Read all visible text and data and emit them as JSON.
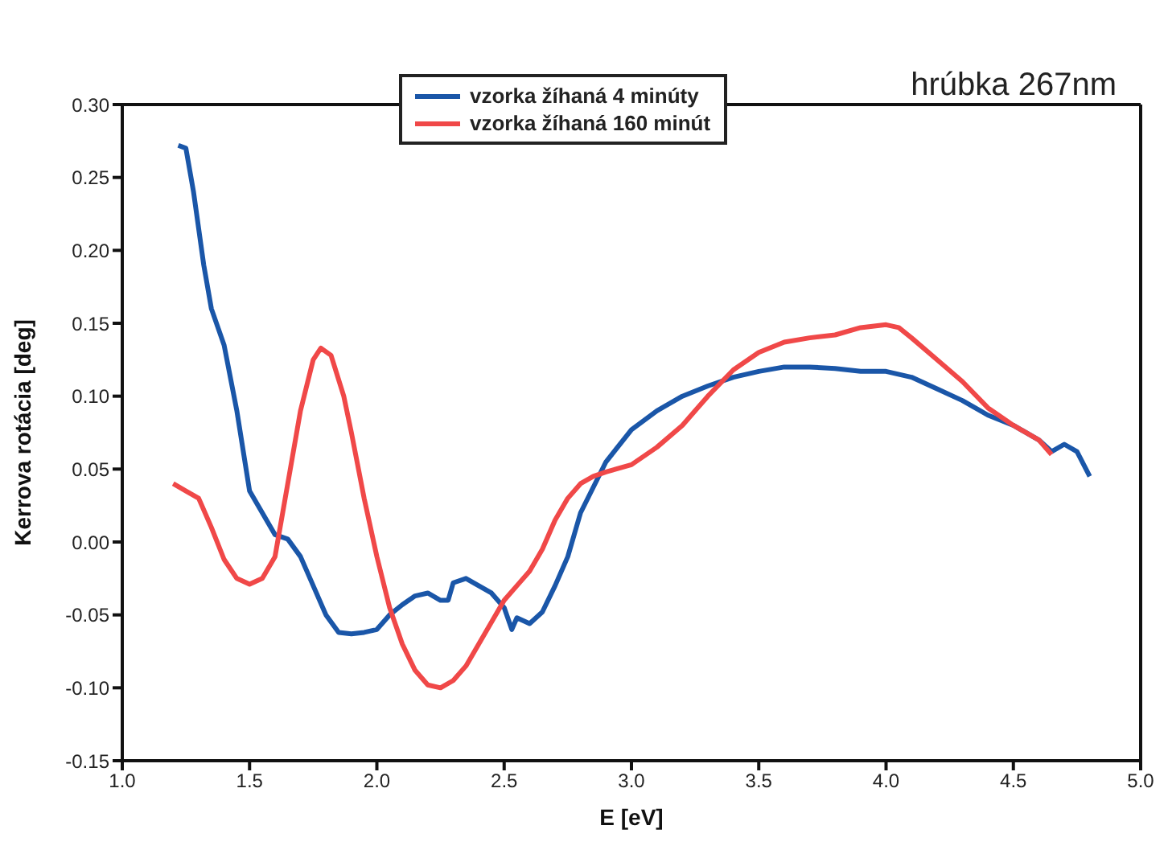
{
  "chart_data": {
    "type": "line",
    "xlabel": "E [eV]",
    "ylabel": "Kerrova rotácia [deg]",
    "annotations": [
      "hrúbka 267nm"
    ],
    "xlim": [
      1.0,
      5.0
    ],
    "xticks": [
      {
        "value": 1.0,
        "label": "1.0"
      },
      {
        "value": 1.5,
        "label": "1.5"
      },
      {
        "value": 2.0,
        "label": "2.0"
      },
      {
        "value": 2.5,
        "label": "2.5"
      },
      {
        "value": 3.0,
        "label": "3.0"
      },
      {
        "value": 3.5,
        "label": "3.5"
      },
      {
        "value": 4.0,
        "label": "4.0"
      },
      {
        "value": 4.5,
        "label": "4.5"
      },
      {
        "value": 5.0,
        "label": "5.0"
      }
    ],
    "ylim": [
      -0.15,
      0.3
    ],
    "yticks": [
      {
        "value": -0.15,
        "label": "-0.15"
      },
      {
        "value": -0.1,
        "label": "-0.10"
      },
      {
        "value": -0.05,
        "label": "-0.05"
      },
      {
        "value": 0,
        "label": "0.00"
      },
      {
        "value": 0.05,
        "label": "0.05"
      },
      {
        "value": 0.1,
        "label": "0.10"
      },
      {
        "value": 0.15,
        "label": "0.15"
      },
      {
        "value": 0.2,
        "label": "0.20"
      },
      {
        "value": 0.25,
        "label": "0.25"
      },
      {
        "value": 0.3,
        "label": "0.30"
      }
    ],
    "legend": "top",
    "marker": "none",
    "line_style": "solid",
    "series": [
      {
        "name": "vzorka žíhaná 4 minúty",
        "color": "#1a56a8",
        "x": [
          1.22,
          1.25,
          1.28,
          1.32,
          1.35,
          1.4,
          1.45,
          1.5,
          1.55,
          1.6,
          1.65,
          1.7,
          1.75,
          1.8,
          1.85,
          1.9,
          1.95,
          2.0,
          2.05,
          2.1,
          2.15,
          2.2,
          2.25,
          2.28,
          2.3,
          2.35,
          2.4,
          2.45,
          2.5,
          2.53,
          2.55,
          2.6,
          2.65,
          2.7,
          2.75,
          2.8,
          2.9,
          3.0,
          3.1,
          3.2,
          3.3,
          3.4,
          3.5,
          3.6,
          3.7,
          3.8,
          3.9,
          4.0,
          4.1,
          4.2,
          4.3,
          4.4,
          4.5,
          4.6,
          4.65,
          4.7,
          4.75,
          4.8
        ],
        "values": [
          0.272,
          0.27,
          0.24,
          0.19,
          0.16,
          0.135,
          0.09,
          0.035,
          0.02,
          0.005,
          0.002,
          -0.01,
          -0.03,
          -0.05,
          -0.062,
          -0.063,
          -0.062,
          -0.06,
          -0.05,
          -0.043,
          -0.037,
          -0.035,
          -0.04,
          -0.04,
          -0.028,
          -0.025,
          -0.03,
          -0.035,
          -0.045,
          -0.06,
          -0.052,
          -0.056,
          -0.048,
          -0.03,
          -0.01,
          0.02,
          0.055,
          0.077,
          0.09,
          0.1,
          0.107,
          0.113,
          0.117,
          0.12,
          0.12,
          0.119,
          0.117,
          0.117,
          0.113,
          0.105,
          0.097,
          0.087,
          0.08,
          0.07,
          0.062,
          0.067,
          0.062,
          0.045
        ]
      },
      {
        "name": "vzorka žíhaná 160 minút",
        "color": "#f04848",
        "x": [
          1.2,
          1.25,
          1.3,
          1.35,
          1.4,
          1.45,
          1.5,
          1.55,
          1.6,
          1.65,
          1.7,
          1.75,
          1.78,
          1.82,
          1.87,
          1.9,
          1.95,
          2.0,
          2.05,
          2.1,
          2.15,
          2.2,
          2.25,
          2.3,
          2.35,
          2.4,
          2.45,
          2.5,
          2.55,
          2.6,
          2.65,
          2.7,
          2.75,
          2.8,
          2.85,
          2.9,
          3.0,
          3.1,
          3.2,
          3.3,
          3.4,
          3.5,
          3.6,
          3.7,
          3.8,
          3.9,
          4.0,
          4.05,
          4.1,
          4.2,
          4.3,
          4.4,
          4.5,
          4.6,
          4.65
        ],
        "values": [
          0.04,
          0.035,
          0.03,
          0.01,
          -0.012,
          -0.025,
          -0.029,
          -0.025,
          -0.01,
          0.04,
          0.09,
          0.125,
          0.133,
          0.128,
          0.1,
          0.075,
          0.03,
          -0.01,
          -0.045,
          -0.07,
          -0.088,
          -0.098,
          -0.1,
          -0.095,
          -0.085,
          -0.07,
          -0.055,
          -0.04,
          -0.03,
          -0.02,
          -0.005,
          0.015,
          0.03,
          0.04,
          0.045,
          0.048,
          0.053,
          0.065,
          0.08,
          0.1,
          0.118,
          0.13,
          0.137,
          0.14,
          0.142,
          0.147,
          0.149,
          0.147,
          0.14,
          0.125,
          0.11,
          0.092,
          0.08,
          0.07,
          0.06
        ]
      }
    ]
  }
}
